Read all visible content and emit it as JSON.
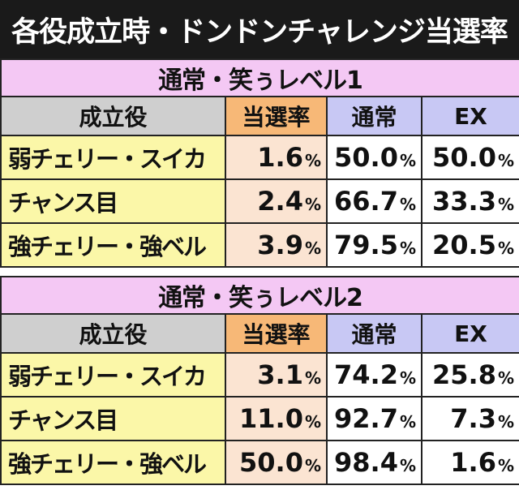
{
  "title": "各役成立時・ドンドンチャレンジ当選率",
  "sections": [
    {
      "title": "通常・笑ぅレベル1",
      "headers": [
        "成立役",
        "当選率",
        "通常",
        "EX"
      ],
      "rows": [
        {
          "role": "弱チェリー・スイカ",
          "rate": "1.6",
          "normal": "50.0",
          "ex": "50.0"
        },
        {
          "role": "チャンス目",
          "rate": "2.4",
          "normal": "66.7",
          "ex": "33.3"
        },
        {
          "role": "強チェリー・強ベル",
          "rate": "3.9",
          "normal": "79.5",
          "ex": "20.5"
        }
      ]
    },
    {
      "title": "通常・笑ぅレベル2",
      "headers": [
        "成立役",
        "当選率",
        "通常",
        "EX"
      ],
      "rows": [
        {
          "role": "弱チェリー・スイカ",
          "rate": "3.1",
          "normal": "74.2",
          "ex": "25.8"
        },
        {
          "role": "チャンス目",
          "rate": "11.0",
          "normal": "92.7",
          "ex": "7.3"
        },
        {
          "role": "強チェリー・強ベル",
          "rate": "50.0",
          "normal": "98.4",
          "ex": "1.6"
        }
      ]
    }
  ],
  "percent_unit": "%",
  "colors": {
    "title_bg": "#1a1a1a",
    "section_bg": "#f4c8f4",
    "header_role_bg": "#cfcfcf",
    "header_rate_bg": "#f7b877",
    "header_other_bg": "#c8c8f4",
    "role_cell_bg": "#fbf7a8",
    "rate_cell_bg": "#fbe4d2"
  }
}
